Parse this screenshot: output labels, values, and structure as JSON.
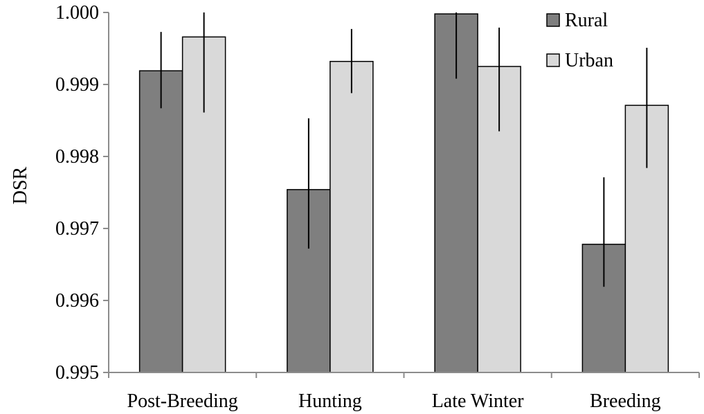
{
  "chart_data": {
    "type": "bar",
    "title": "",
    "xlabel": "",
    "ylabel": "DSR",
    "ylim": [
      0.995,
      1.0
    ],
    "yticks": [
      0.995,
      0.996,
      0.997,
      0.998,
      0.999,
      1.0
    ],
    "ytick_labels": [
      "0.995",
      "0.996",
      "0.997",
      "0.998",
      "0.999",
      "1.000"
    ],
    "grid": false,
    "legend_position": "top-right",
    "categories": [
      "Post-Breeding",
      "Hunting",
      "Late Winter",
      "Breeding"
    ],
    "series": [
      {
        "name": "Rural",
        "color": "#7f7f7f",
        "values": [
          0.99919,
          0.99754,
          0.99998,
          0.99678
        ],
        "error_low": [
          0.99867,
          0.99672,
          0.99908,
          0.99619
        ],
        "error_high": [
          0.99973,
          0.99853,
          1.0,
          0.99771
        ]
      },
      {
        "name": "Urban",
        "color": "#d9d9d9",
        "values": [
          0.99966,
          0.99932,
          0.99925,
          0.99871
        ],
        "error_low": [
          0.99861,
          0.99888,
          0.99835,
          0.99784
        ],
        "error_high": [
          1.0,
          0.99977,
          0.99979,
          0.99951
        ]
      }
    ]
  }
}
